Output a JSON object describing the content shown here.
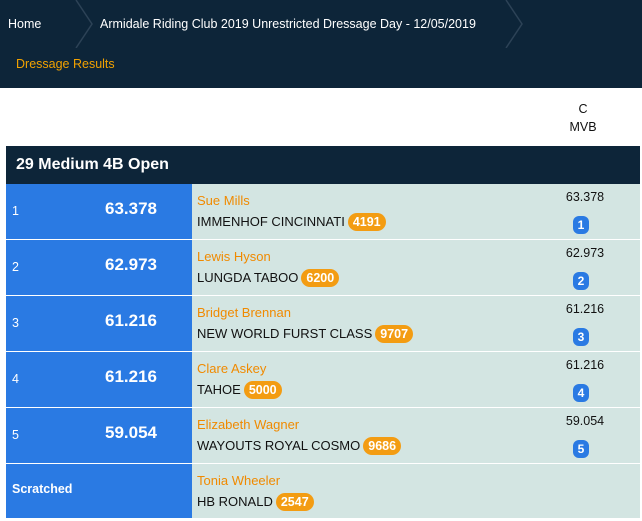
{
  "breadcrumb": {
    "home_label": "Home",
    "event_label": "Armidale Riding Club 2019 Unrestricted Dressage Day - 12/05/2019"
  },
  "subnav": {
    "label": "Dressage Results"
  },
  "judges": {
    "position": "C",
    "name": "MVB"
  },
  "class": {
    "title": "29 Medium 4B Open",
    "rows": [
      {
        "place": "1",
        "score": "63.378",
        "rider": "Sue Mills",
        "horse": "IMMENHOF CINCINNATI",
        "horse_no": "4191",
        "judge_score": "63.378",
        "judge_rank": "1"
      },
      {
        "place": "2",
        "score": "62.973",
        "rider": "Lewis Hyson",
        "horse": "LUNGDA TABOO",
        "horse_no": "6200",
        "judge_score": "62.973",
        "judge_rank": "2"
      },
      {
        "place": "3",
        "score": "61.216",
        "rider": "Bridget Brennan",
        "horse": "NEW WORLD FURST CLASS",
        "horse_no": "9707",
        "judge_score": "61.216",
        "judge_rank": "3"
      },
      {
        "place": "4",
        "score": "61.216",
        "rider": "Clare Askey",
        "horse": "TAHOE",
        "horse_no": "5000",
        "judge_score": "61.216",
        "judge_rank": "4"
      },
      {
        "place": "5",
        "score": "59.054",
        "rider": "Elizabeth Wagner",
        "horse": "WAYOUTS ROYAL COSMO",
        "horse_no": "9686",
        "judge_score": "59.054",
        "judge_rank": "5"
      }
    ],
    "scratched": {
      "label": "Scratched",
      "rider": "Tonia Wheeler",
      "horse": "HB RONALD",
      "horse_no": "2547"
    }
  },
  "colors": {
    "header_bg": "#0d2539",
    "accent_orange": "#f08a00",
    "place_blue": "#2a7ae3",
    "row_bg": "#d3e5e2"
  }
}
